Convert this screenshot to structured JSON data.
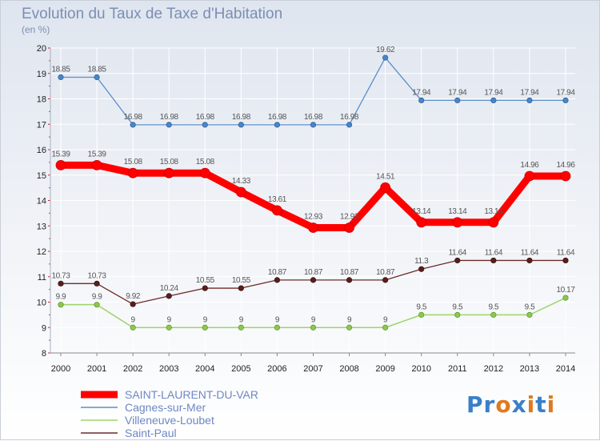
{
  "title": "Evolution du Taux de Taxe d'Habitation",
  "subtitle": "(en %)",
  "logo": "Proxiti",
  "chart_data": {
    "type": "line",
    "title": "Evolution du Taux de Taxe d'Habitation",
    "subtitle": "(en %)",
    "xlabel": "",
    "ylabel": "",
    "ylim": [
      8,
      20
    ],
    "yticks": [
      "8",
      "9",
      "10",
      "11",
      "12",
      "13",
      "14",
      "15",
      "16",
      "17",
      "18",
      "19",
      "20"
    ],
    "grid": true,
    "legend_position": "bottom-left",
    "x": [
      "2000",
      "2001",
      "2002",
      "2003",
      "2004",
      "2005",
      "2006",
      "2007",
      "2008",
      "2009",
      "2010",
      "2011",
      "2012",
      "2013",
      "2014"
    ],
    "series": [
      {
        "name": "SAINT-LAURENT-DU-VAR",
        "color": "#ff0000",
        "values": [
          15.39,
          15.39,
          15.08,
          15.08,
          15.08,
          14.33,
          13.61,
          12.93,
          12.93,
          14.51,
          13.14,
          13.14,
          13.14,
          14.96,
          14.96
        ],
        "labels": [
          "15.39",
          "15.39",
          "15.08",
          "15.08",
          "15.08",
          "14.33",
          "13.61",
          "12.93",
          "12.93",
          "14.51",
          "13.14",
          "13.14",
          "13.14",
          "14.96",
          "14.96"
        ]
      },
      {
        "name": "Cagnes-sur-Mer",
        "color": "#5b8fc7",
        "values": [
          18.85,
          18.85,
          16.98,
          16.98,
          16.98,
          16.98,
          16.98,
          16.98,
          16.98,
          19.62,
          17.94,
          17.94,
          17.94,
          17.94,
          17.94
        ],
        "labels": [
          "18.85",
          "18.85",
          "16.98",
          "16.98",
          "16.98",
          "16.98",
          "16.98",
          "16.98",
          "16.98",
          "19.62",
          "17.94",
          "17.94",
          "17.94",
          "17.94",
          "17.94"
        ]
      },
      {
        "name": "Villeneuve-Loubet",
        "color": "#9fd36a",
        "values": [
          9.9,
          9.9,
          9,
          9,
          9,
          9,
          9,
          9,
          9,
          9,
          9.5,
          9.5,
          9.5,
          9.5,
          10.17
        ],
        "labels": [
          "9.9",
          "9.9",
          "9",
          "9",
          "9",
          "9",
          "9",
          "9",
          "9",
          "9",
          "9.5",
          "9.5",
          "9.5",
          "9.5",
          "10.17"
        ]
      },
      {
        "name": "Saint-Paul",
        "color": "#6e2a2a",
        "values": [
          10.73,
          10.73,
          9.92,
          10.24,
          10.55,
          10.55,
          10.87,
          10.87,
          10.87,
          10.87,
          11.3,
          11.64,
          11.64,
          11.64,
          11.64
        ],
        "labels": [
          "10.73",
          "10.73",
          "9.92",
          "10.24",
          "10.55",
          "10.55",
          "10.87",
          "10.87",
          "10.87",
          "10.87",
          "11.3",
          "11.64",
          "11.64",
          "11.64",
          "11.64"
        ]
      }
    ]
  }
}
